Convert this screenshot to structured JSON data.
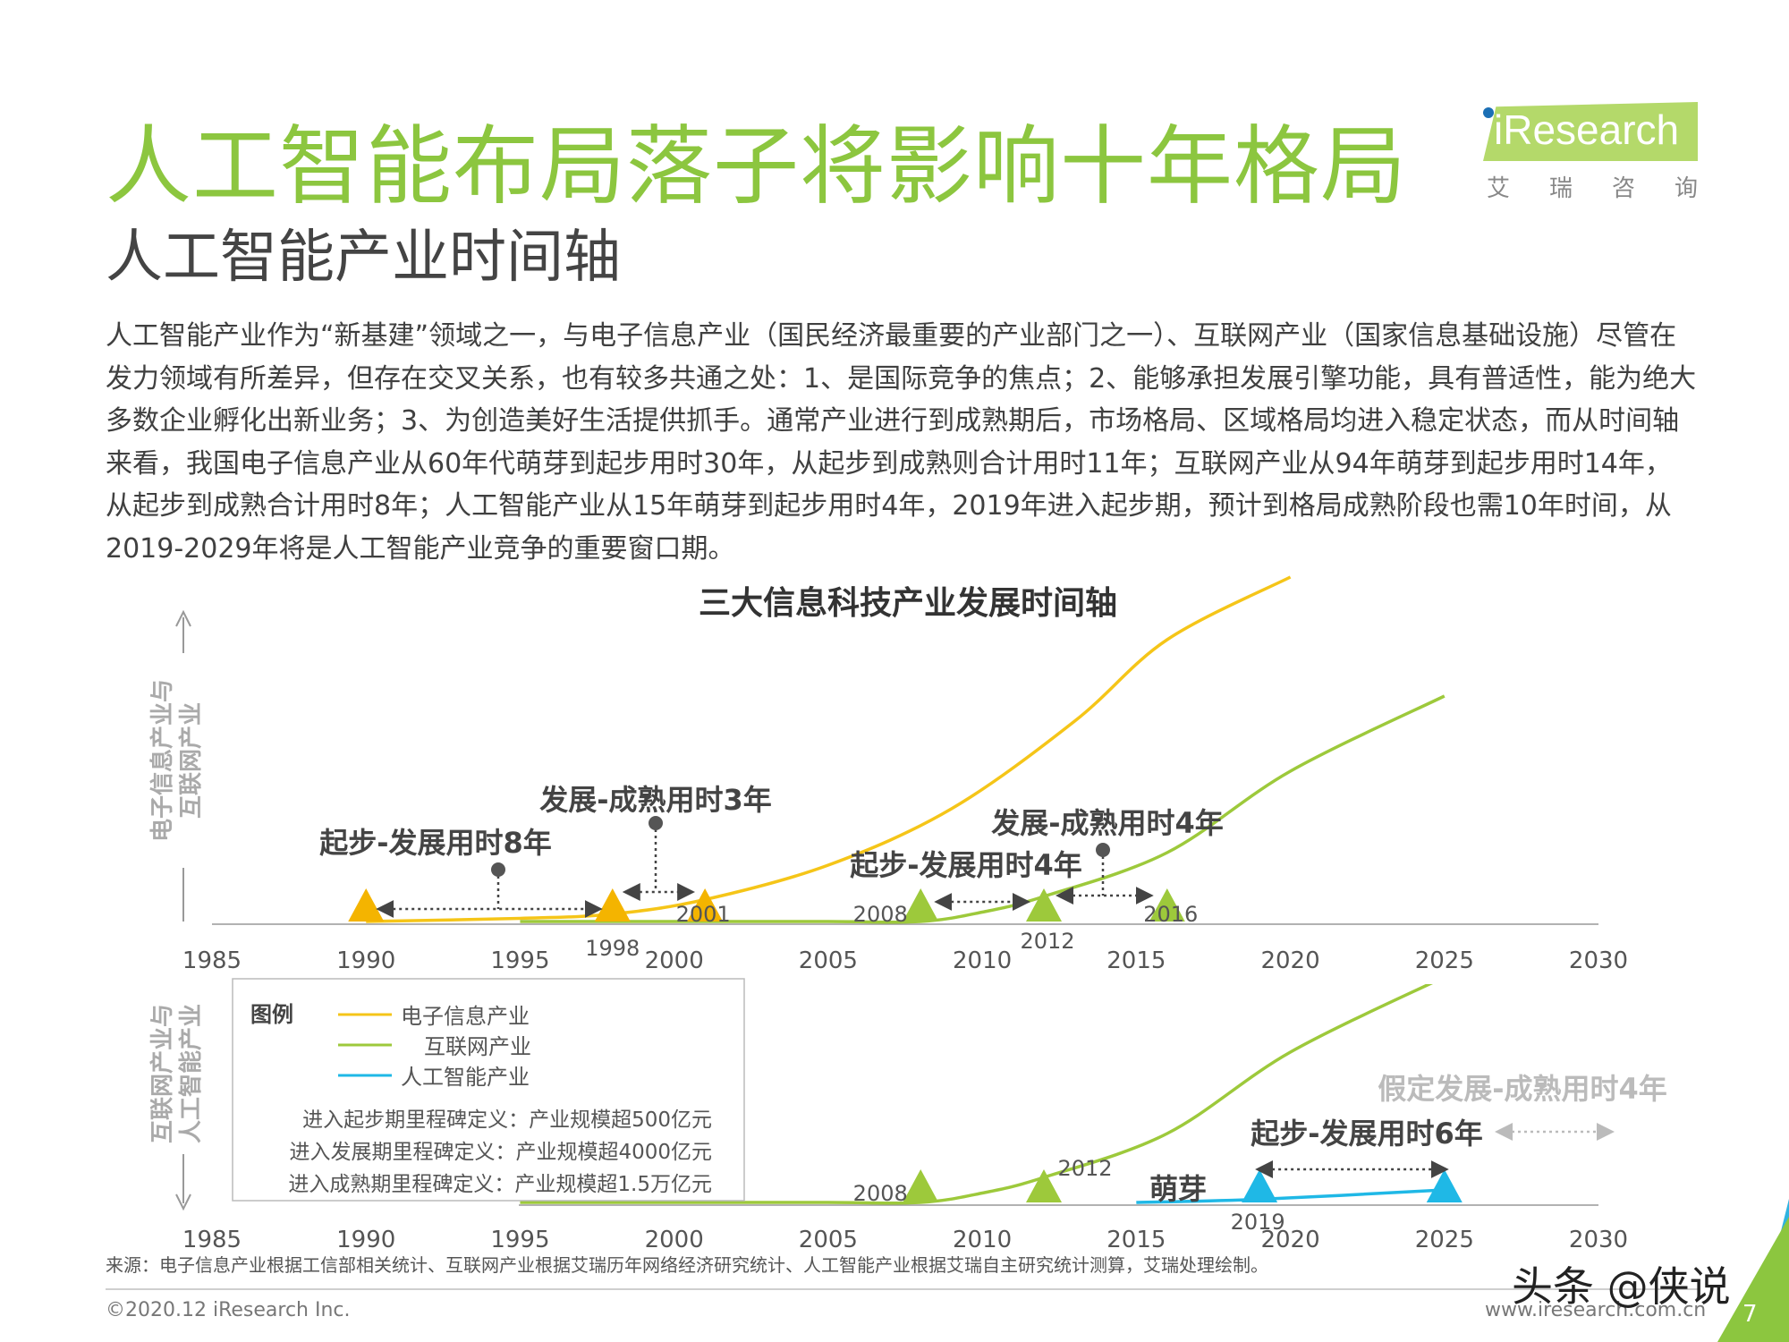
{
  "header": {
    "title": "人工智能布局落子将影响十年格局",
    "subtitle": "人工智能产业时间轴",
    "logo_text": "iResearch",
    "logo_cn": [
      "艾",
      "瑞",
      "咨",
      "询"
    ]
  },
  "intro": "人工智能产业作为“新基建”领域之一，与电子信息产业（国民经济最重要的产业部门之一）、互联网产业（国家信息基础设施）尽管在发力领域有所差异，但存在交叉关系，也有较多共通之处：1、是国际竞争的焦点；2、能够承担发展引擎功能，具有普适性，能为绝大多数企业孵化出新业务；3、为创造美好生活提供抓手。通常产业进行到成熟期后，市场格局、区域格局均进入稳定状态，而从时间轴来看，我国电子信息产业从60年代萌芽到起步用时30年，从起步到成熟则合计用时11年；互联网产业从94年萌芽到起步用时14年，从起步到成熟合计用时8年；人工智能产业从15年萌芽到起步用时4年，2019年进入起步期，预计到格局成熟阶段也需10年时间，从2019-2029年将是人工智能产业竞争的重要窗口期。",
  "chart_data": {
    "type": "line",
    "title": "三大信息科技产业发展时间轴",
    "colors": {
      "electronic": "#f5c518",
      "internet": "#9dc93b",
      "ai": "#1fb8e6",
      "axis": "#999999",
      "annot": "#444444",
      "hypo": "#bbbbbb"
    },
    "panels": [
      {
        "ylabel": [
          "电子信息产业与",
          "互联网产业"
        ],
        "xlim": [
          1985,
          2030
        ],
        "x_ticks": [
          "1985",
          "1990",
          "1995",
          "2000",
          "2005",
          "2010",
          "2015",
          "2020",
          "2025",
          "2030"
        ],
        "series": [
          {
            "key": "electronic",
            "x": [
              1990,
              1995,
              1998,
              2001,
              2005,
              2009,
              2013,
              2016,
              2020
            ],
            "y": [
              0,
              0.05,
              0.12,
              0.35,
              0.9,
              1.8,
              3.2,
              4.5,
              5.5
            ]
          },
          {
            "key": "internet",
            "x": [
              1995,
              2000,
              2005,
              2008,
              2010,
              2012,
              2016,
              2020,
              2025
            ],
            "y": [
              0,
              0,
              0,
              0,
              0.15,
              0.4,
              1.1,
              2.4,
              3.6
            ]
          }
        ],
        "milestones": [
          {
            "key": "electronic",
            "x": 1990,
            "label": ""
          },
          {
            "key": "electronic",
            "x": 1998,
            "label": "1998"
          },
          {
            "key": "electronic",
            "x": 2001,
            "label": "2001"
          },
          {
            "key": "internet",
            "x": 2008,
            "label": "2008"
          },
          {
            "key": "internet",
            "x": 2012,
            "label": "2012"
          },
          {
            "key": "internet",
            "x": 2016,
            "label": "2016"
          }
        ],
        "annotations": [
          {
            "text": "起步-发展用时8年",
            "from": 1990,
            "to": 1998
          },
          {
            "text": "发展-成熟用时3年",
            "from": 1998,
            "to": 2001
          },
          {
            "text": "起步-发展用时4年",
            "from": 2008,
            "to": 2012
          },
          {
            "text": "发展-成熟用时4年",
            "from": 2012,
            "to": 2016
          }
        ]
      },
      {
        "ylabel": [
          "互联网产业与",
          "人工智能产业"
        ],
        "xlim": [
          1985,
          2030
        ],
        "x_ticks": [
          "1985",
          "1990",
          "1995",
          "2000",
          "2005",
          "2010",
          "2015",
          "2020",
          "2025",
          "2030"
        ],
        "series": [
          {
            "key": "internet",
            "x": [
              1995,
              2000,
              2005,
              2008,
              2010,
              2012,
              2016,
              2020,
              2025
            ],
            "y": [
              0,
              0,
              0,
              0,
              0.15,
              0.4,
              1.1,
              2.4,
              3.6
            ]
          },
          {
            "key": "ai",
            "x": [
              2015,
              2019,
              2025
            ],
            "y": [
              0,
              0.05,
              0.2
            ]
          }
        ],
        "milestones": [
          {
            "key": "internet",
            "x": 2008,
            "label": "2008"
          },
          {
            "key": "internet",
            "x": 2012,
            "label": "2012"
          },
          {
            "key": "ai",
            "x": 2019,
            "label": "2019"
          },
          {
            "key": "ai",
            "x": 2025,
            "label": ""
          }
        ],
        "annotations": [
          {
            "text": "萌芽",
            "style": "plain"
          },
          {
            "text": "起步-发展用时6年",
            "from": 2019,
            "to": 2025
          },
          {
            "text": "假定发展-成熟用时4年",
            "style": "hypothetical"
          }
        ]
      }
    ],
    "legend": {
      "title": "图例",
      "items": [
        {
          "key": "electronic",
          "label": "电子信息产业"
        },
        {
          "key": "internet",
          "label": "互联网产业"
        },
        {
          "key": "ai",
          "label": "人工智能产业"
        }
      ],
      "notes": [
        "进入起步期里程碑定义：产业规模超500亿元",
        "进入发展期里程碑定义：产业规模超4000亿元",
        "进入成熟期里程碑定义：产业规模超1.5万亿元"
      ]
    }
  },
  "footer": {
    "source": "来源：电子信息产业根据工信部相关统计、互联网产业根据艾瑞历年网络经济研究统计、人工智能产业根据艾瑞自主研究统计测算，艾瑞处理绘制。",
    "copyright": "©2020.12 iResearch Inc.",
    "url": "www.iresearch.com.cn",
    "watermark": "头条 @侠说",
    "page": "7"
  }
}
